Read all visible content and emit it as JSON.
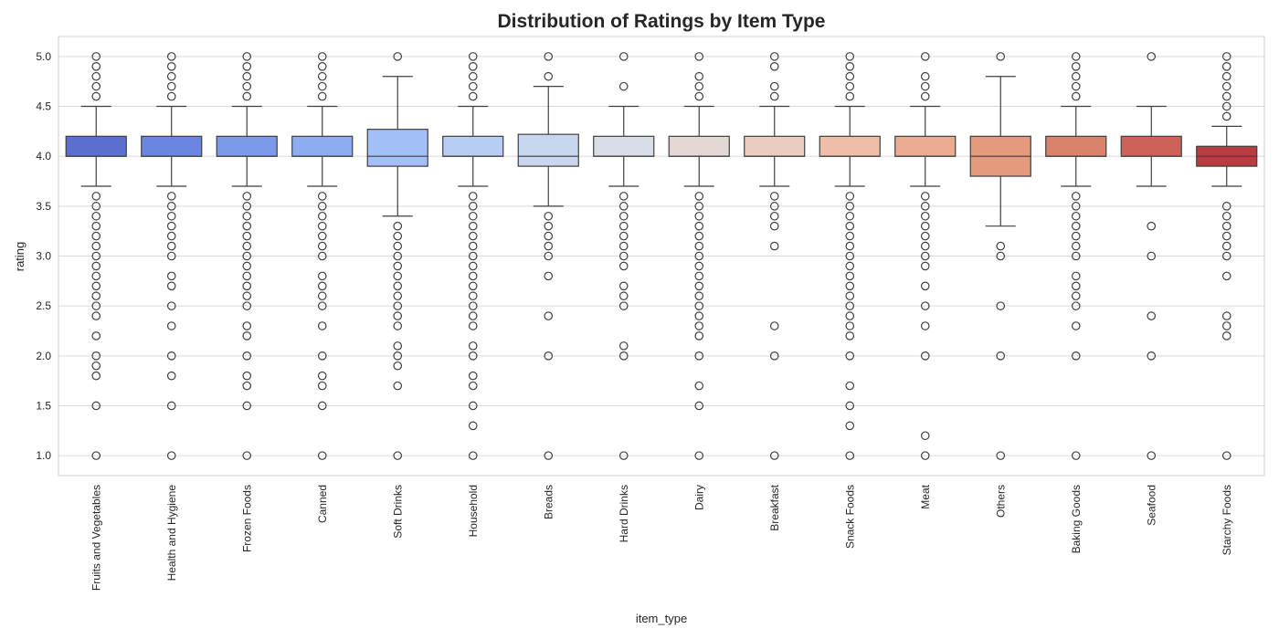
{
  "chart_data": {
    "type": "box",
    "title": "Distribution of Ratings by Item Type",
    "xlabel": "item_type",
    "ylabel": "rating",
    "ylim": [
      0.8,
      5.2
    ],
    "yticks": [
      1.0,
      1.5,
      2.0,
      2.5,
      3.0,
      3.5,
      4.0,
      4.5,
      5.0
    ],
    "grid": true,
    "categories": [
      "Fruits and Vegetables",
      "Health and Hygiene",
      "Frozen Foods",
      "Canned",
      "Soft Drinks",
      "Household",
      "Breads",
      "Hard Drinks",
      "Dairy",
      "Breakfast",
      "Snack Foods",
      "Meat",
      "Others",
      "Baking Goods",
      "Seafood",
      "Starchy Foods"
    ],
    "boxes": [
      {
        "q1": 4.0,
        "median": 4.0,
        "q3": 4.2,
        "whisker_low": 3.7,
        "whisker_high": 4.5,
        "color": "#5b6fd1",
        "outliers": [
          1.0,
          1.5,
          1.8,
          1.9,
          2.0,
          2.2,
          2.4,
          2.5,
          2.6,
          2.7,
          2.8,
          2.9,
          3.0,
          3.1,
          3.2,
          3.3,
          3.4,
          3.5,
          3.6,
          4.6,
          4.7,
          4.8,
          4.9,
          5.0
        ]
      },
      {
        "q1": 4.0,
        "median": 4.0,
        "q3": 4.2,
        "whisker_low": 3.7,
        "whisker_high": 4.5,
        "color": "#6a86e0",
        "outliers": [
          1.0,
          1.5,
          1.8,
          2.0,
          2.3,
          2.5,
          2.7,
          2.8,
          3.0,
          3.1,
          3.2,
          3.3,
          3.4,
          3.5,
          3.6,
          4.6,
          4.7,
          4.8,
          4.9,
          5.0
        ]
      },
      {
        "q1": 4.0,
        "median": 4.0,
        "q3": 4.2,
        "whisker_low": 3.7,
        "whisker_high": 4.5,
        "color": "#7c9aea",
        "outliers": [
          1.0,
          1.5,
          1.7,
          1.8,
          2.0,
          2.2,
          2.3,
          2.5,
          2.6,
          2.7,
          2.8,
          2.9,
          3.0,
          3.1,
          3.2,
          3.3,
          3.4,
          3.5,
          3.6,
          4.6,
          4.7,
          4.8,
          4.9,
          5.0
        ]
      },
      {
        "q1": 4.0,
        "median": 4.0,
        "q3": 4.2,
        "whisker_low": 3.7,
        "whisker_high": 4.5,
        "color": "#8eacf2",
        "outliers": [
          1.0,
          1.5,
          1.7,
          1.8,
          2.0,
          2.3,
          2.5,
          2.6,
          2.7,
          2.8,
          3.0,
          3.1,
          3.2,
          3.3,
          3.4,
          3.5,
          3.6,
          4.6,
          4.7,
          4.8,
          4.9,
          5.0
        ]
      },
      {
        "q1": 3.9,
        "median": 4.0,
        "q3": 4.27,
        "whisker_low": 3.4,
        "whisker_high": 4.8,
        "color": "#a3bff7",
        "outliers": [
          1.0,
          1.7,
          1.9,
          2.0,
          2.1,
          2.3,
          2.4,
          2.5,
          2.6,
          2.7,
          2.8,
          2.9,
          3.0,
          3.1,
          3.2,
          3.3,
          5.0
        ]
      },
      {
        "q1": 4.0,
        "median": 4.0,
        "q3": 4.2,
        "whisker_low": 3.7,
        "whisker_high": 4.5,
        "color": "#b7cdf4",
        "outliers": [
          1.0,
          1.3,
          1.5,
          1.7,
          1.8,
          2.0,
          2.1,
          2.3,
          2.4,
          2.5,
          2.6,
          2.7,
          2.8,
          2.9,
          3.0,
          3.1,
          3.2,
          3.3,
          3.4,
          3.5,
          3.6,
          4.6,
          4.7,
          4.8,
          4.9,
          5.0
        ]
      },
      {
        "q1": 3.9,
        "median": 4.0,
        "q3": 4.22,
        "whisker_low": 3.5,
        "whisker_high": 4.7,
        "color": "#c9d7ee",
        "outliers": [
          1.0,
          2.0,
          2.4,
          2.8,
          3.0,
          3.1,
          3.2,
          3.3,
          3.4,
          4.8,
          5.0
        ]
      },
      {
        "q1": 4.0,
        "median": 4.0,
        "q3": 4.2,
        "whisker_low": 3.7,
        "whisker_high": 4.5,
        "color": "#d8dce4",
        "outliers": [
          1.0,
          2.0,
          2.1,
          2.5,
          2.6,
          2.7,
          2.9,
          3.0,
          3.1,
          3.2,
          3.3,
          3.4,
          3.5,
          3.6,
          4.7,
          5.0
        ]
      },
      {
        "q1": 4.0,
        "median": 4.0,
        "q3": 4.2,
        "whisker_low": 3.7,
        "whisker_high": 4.5,
        "color": "#e4d8d4",
        "outliers": [
          1.0,
          1.5,
          1.7,
          2.0,
          2.2,
          2.3,
          2.4,
          2.5,
          2.6,
          2.7,
          2.8,
          2.9,
          3.0,
          3.1,
          3.2,
          3.3,
          3.4,
          3.5,
          3.6,
          4.6,
          4.7,
          4.8,
          5.0
        ]
      },
      {
        "q1": 4.0,
        "median": 4.0,
        "q3": 4.2,
        "whisker_low": 3.7,
        "whisker_high": 4.5,
        "color": "#eacdc0",
        "outliers": [
          1.0,
          2.0,
          2.3,
          3.1,
          3.3,
          3.4,
          3.5,
          3.6,
          4.6,
          4.7,
          4.9,
          5.0
        ]
      },
      {
        "q1": 4.0,
        "median": 4.0,
        "q3": 4.2,
        "whisker_low": 3.7,
        "whisker_high": 4.5,
        "color": "#efbea8",
        "outliers": [
          1.0,
          1.3,
          1.5,
          1.7,
          2.0,
          2.2,
          2.3,
          2.4,
          2.5,
          2.6,
          2.7,
          2.8,
          2.9,
          3.0,
          3.1,
          3.2,
          3.3,
          3.4,
          3.5,
          3.6,
          4.6,
          4.7,
          4.8,
          4.9,
          5.0
        ]
      },
      {
        "q1": 4.0,
        "median": 4.0,
        "q3": 4.2,
        "whisker_low": 3.7,
        "whisker_high": 4.5,
        "color": "#ecac91",
        "outliers": [
          1.0,
          1.2,
          2.0,
          2.3,
          2.5,
          2.7,
          2.9,
          3.0,
          3.1,
          3.2,
          3.3,
          3.4,
          3.5,
          3.6,
          4.6,
          4.7,
          4.8,
          5.0
        ]
      },
      {
        "q1": 3.8,
        "median": 4.0,
        "q3": 4.2,
        "whisker_low": 3.3,
        "whisker_high": 4.8,
        "color": "#e59a7e",
        "outliers": [
          1.0,
          2.0,
          2.5,
          3.0,
          3.1,
          5.0
        ]
      },
      {
        "q1": 4.0,
        "median": 4.0,
        "q3": 4.2,
        "whisker_low": 3.7,
        "whisker_high": 4.5,
        "color": "#da826b",
        "outliers": [
          1.0,
          2.0,
          2.3,
          2.5,
          2.6,
          2.7,
          2.8,
          3.0,
          3.1,
          3.2,
          3.3,
          3.4,
          3.5,
          3.6,
          4.6,
          4.7,
          4.8,
          4.9,
          5.0
        ]
      },
      {
        "q1": 4.0,
        "median": 4.0,
        "q3": 4.2,
        "whisker_low": 3.7,
        "whisker_high": 4.5,
        "color": "#cb6358",
        "outliers": [
          1.0,
          2.0,
          2.4,
          3.0,
          3.3,
          5.0
        ]
      },
      {
        "q1": 3.9,
        "median": 4.0,
        "q3": 4.1,
        "whisker_low": 3.7,
        "whisker_high": 4.3,
        "color": "#b93d40",
        "outliers": [
          1.0,
          2.2,
          2.3,
          2.4,
          2.8,
          3.0,
          3.1,
          3.2,
          3.3,
          3.4,
          3.5,
          4.4,
          4.5,
          4.6,
          4.7,
          4.8,
          4.9,
          5.0
        ]
      }
    ]
  }
}
